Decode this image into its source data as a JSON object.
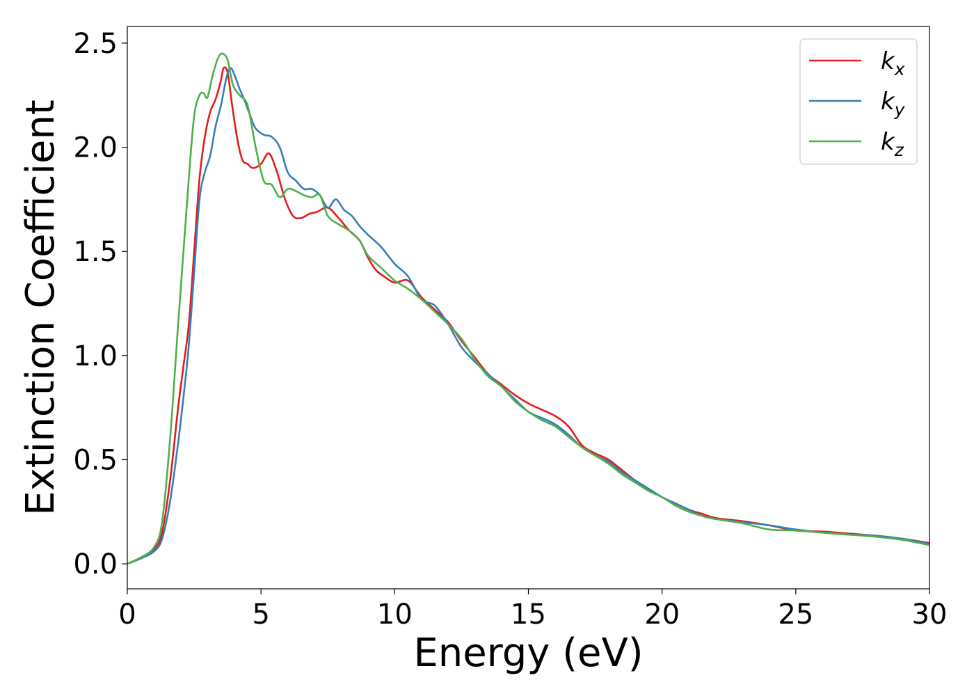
{
  "chart_data": {
    "type": "line",
    "title": "",
    "xlabel": "Energy (eV)",
    "ylabel": "Extinction Coefficient",
    "xlim": [
      0,
      30
    ],
    "ylim": [
      -0.12,
      2.58
    ],
    "xticks": [
      0,
      5,
      10,
      15,
      20,
      25,
      30
    ],
    "xtick_labels": [
      "0",
      "5",
      "10",
      "15",
      "20",
      "25",
      "30"
    ],
    "yticks": [
      0.0,
      0.5,
      1.0,
      1.5,
      2.0,
      2.5
    ],
    "ytick_labels": [
      "0.0",
      "0.5",
      "1.0",
      "1.5",
      "2.0",
      "2.5"
    ],
    "grid": false,
    "legend_position": "top-right",
    "series": [
      {
        "name": "k",
        "subscript": "x",
        "color": "#e41a1c",
        "x": [
          0,
          0.5,
          1.0,
          1.3,
          1.6,
          1.9,
          2.1,
          2.3,
          2.5,
          2.7,
          2.9,
          3.1,
          3.3,
          3.5,
          3.6,
          3.75,
          3.9,
          4.1,
          4.3,
          4.5,
          4.7,
          5.0,
          5.3,
          5.6,
          5.9,
          6.2,
          6.5,
          6.8,
          7.1,
          7.5,
          7.9,
          8.3,
          8.7,
          9.0,
          9.3,
          9.6,
          10.0,
          10.5,
          11.0,
          11.5,
          12.0,
          12.5,
          13.0,
          13.5,
          14.0,
          14.5,
          15.0,
          15.5,
          16.0,
          16.5,
          17.0,
          17.5,
          18.0,
          18.5,
          19.0,
          19.5,
          20.0,
          20.5,
          21.0,
          21.5,
          22.0,
          23.0,
          24.0,
          25.0,
          26.0,
          27.0,
          28.0,
          29.0,
          30.0
        ],
        "y": [
          0.0,
          0.03,
          0.07,
          0.15,
          0.4,
          0.75,
          0.95,
          1.15,
          1.5,
          1.85,
          2.05,
          2.17,
          2.23,
          2.32,
          2.38,
          2.36,
          2.22,
          2.05,
          1.94,
          1.92,
          1.9,
          1.92,
          1.97,
          1.88,
          1.75,
          1.67,
          1.66,
          1.68,
          1.69,
          1.71,
          1.66,
          1.6,
          1.55,
          1.47,
          1.41,
          1.38,
          1.35,
          1.36,
          1.28,
          1.22,
          1.16,
          1.07,
          0.99,
          0.91,
          0.86,
          0.81,
          0.77,
          0.74,
          0.71,
          0.66,
          0.57,
          0.53,
          0.5,
          0.45,
          0.4,
          0.36,
          0.32,
          0.29,
          0.26,
          0.24,
          0.22,
          0.205,
          0.185,
          0.16,
          0.155,
          0.145,
          0.135,
          0.12,
          0.1
        ]
      },
      {
        "name": "k",
        "subscript": "y",
        "color": "#377eb8",
        "x": [
          0,
          0.5,
          1.0,
          1.3,
          1.6,
          1.9,
          2.1,
          2.3,
          2.5,
          2.7,
          2.9,
          3.1,
          3.3,
          3.5,
          3.7,
          3.85,
          4.0,
          4.2,
          4.4,
          4.6,
          4.8,
          5.1,
          5.4,
          5.7,
          6.0,
          6.3,
          6.6,
          6.9,
          7.2,
          7.5,
          7.8,
          8.1,
          8.4,
          8.7,
          9.0,
          9.5,
          10.0,
          10.5,
          11.0,
          11.5,
          12.0,
          12.5,
          13.0,
          13.5,
          14.0,
          14.5,
          15.0,
          15.5,
          16.0,
          16.5,
          17.0,
          17.5,
          18.0,
          18.5,
          19.0,
          19.5,
          20.0,
          20.5,
          21.0,
          21.5,
          22.0,
          23.0,
          24.0,
          25.0,
          26.0,
          27.0,
          28.0,
          29.0,
          30.0
        ],
        "y": [
          0.0,
          0.025,
          0.06,
          0.12,
          0.3,
          0.58,
          0.8,
          1.05,
          1.4,
          1.75,
          1.88,
          1.96,
          2.1,
          2.2,
          2.33,
          2.38,
          2.35,
          2.28,
          2.22,
          2.15,
          2.09,
          2.06,
          2.05,
          2.0,
          1.88,
          1.84,
          1.8,
          1.8,
          1.77,
          1.71,
          1.75,
          1.7,
          1.67,
          1.62,
          1.58,
          1.52,
          1.44,
          1.38,
          1.27,
          1.24,
          1.15,
          1.04,
          0.97,
          0.91,
          0.85,
          0.79,
          0.73,
          0.7,
          0.67,
          0.62,
          0.56,
          0.52,
          0.49,
          0.44,
          0.4,
          0.36,
          0.32,
          0.29,
          0.26,
          0.23,
          0.215,
          0.2,
          0.185,
          0.165,
          0.15,
          0.14,
          0.135,
          0.12,
          0.095
        ]
      },
      {
        "name": "k",
        "subscript": "z",
        "color": "#4daf4a",
        "x": [
          0,
          0.5,
          1.0,
          1.3,
          1.6,
          1.9,
          2.1,
          2.3,
          2.5,
          2.7,
          2.85,
          3.0,
          3.2,
          3.4,
          3.55,
          3.75,
          3.95,
          4.2,
          4.5,
          4.8,
          5.1,
          5.4,
          5.7,
          6.0,
          6.3,
          6.6,
          6.9,
          7.2,
          7.5,
          7.9,
          8.3,
          8.7,
          9.0,
          9.5,
          10.0,
          10.5,
          11.0,
          11.5,
          12.0,
          12.5,
          13.0,
          13.5,
          14.0,
          14.5,
          15.0,
          15.5,
          16.0,
          16.5,
          17.0,
          17.5,
          18.0,
          18.5,
          19.0,
          19.5,
          20.0,
          20.5,
          21.0,
          21.5,
          22.0,
          23.0,
          24.0,
          25.0,
          26.0,
          27.0,
          28.0,
          29.0,
          30.0
        ],
        "y": [
          0.0,
          0.03,
          0.08,
          0.2,
          0.6,
          1.15,
          1.5,
          1.85,
          2.15,
          2.25,
          2.26,
          2.24,
          2.35,
          2.43,
          2.45,
          2.42,
          2.3,
          2.25,
          2.2,
          2.0,
          1.84,
          1.82,
          1.76,
          1.8,
          1.79,
          1.77,
          1.76,
          1.77,
          1.67,
          1.63,
          1.6,
          1.55,
          1.48,
          1.42,
          1.36,
          1.32,
          1.27,
          1.21,
          1.15,
          1.08,
          0.98,
          0.9,
          0.85,
          0.78,
          0.73,
          0.69,
          0.66,
          0.61,
          0.56,
          0.52,
          0.48,
          0.43,
          0.39,
          0.35,
          0.32,
          0.28,
          0.25,
          0.23,
          0.215,
          0.195,
          0.165,
          0.16,
          0.15,
          0.14,
          0.13,
          0.115,
          0.09
        ]
      }
    ]
  }
}
